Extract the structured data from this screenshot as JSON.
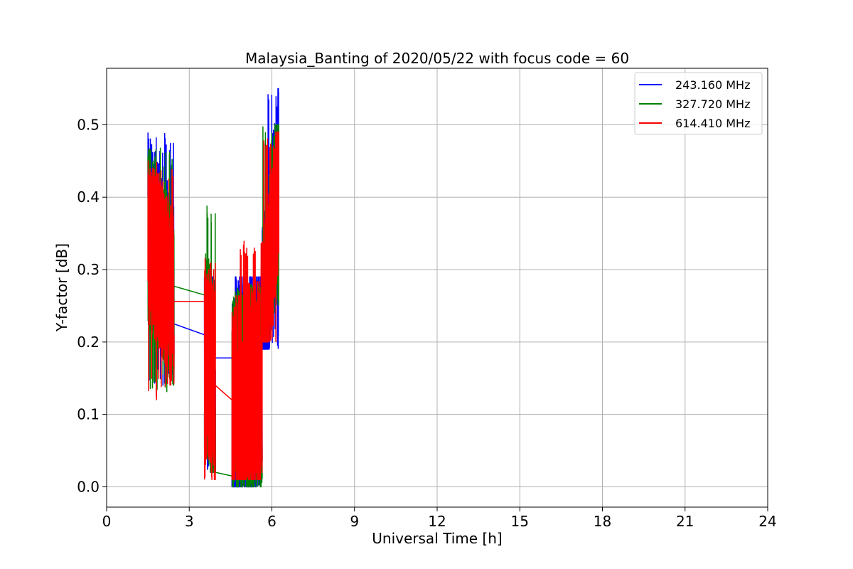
{
  "chart_data": {
    "type": "line",
    "title": "Malaysia_Banting of 2020/05/22 with focus code = 60",
    "xlabel": "Universal Time [h]",
    "ylabel": "Y-factor [dB]",
    "xlim": [
      0,
      24
    ],
    "ylim": [
      -0.028,
      0.578
    ],
    "xticks": [
      0,
      3,
      6,
      9,
      12,
      15,
      18,
      21,
      24
    ],
    "yticks": [
      0.0,
      0.1,
      0.2,
      0.3,
      0.4,
      0.5
    ],
    "ytick_labels": [
      "0.0",
      "0.1",
      "0.2",
      "0.3",
      "0.4",
      "0.5"
    ],
    "grid": true,
    "legend_position": "top-right",
    "series": [
      {
        "name": "243.160 MHz",
        "color": "#0000ff",
        "segments": [
          {
            "x_range": [
              1.5,
              2.45
            ],
            "y_start": 0.36,
            "y_end": 0.27,
            "amplitude": 0.13,
            "peak": 0.49,
            "trough": 0.14
          },
          {
            "x_range": [
              3.55,
              3.95
            ],
            "y_start": 0.2,
            "y_end": 0.14,
            "amplitude": 0.16,
            "peak": 0.29,
            "trough": 0.02
          },
          {
            "x_range": [
              4.55,
              5.65
            ],
            "y_start": 0.12,
            "y_end": 0.16,
            "amplitude": 0.17,
            "peak": 0.29,
            "trough": 0.0
          },
          {
            "x_range": [
              5.65,
              6.25
            ],
            "y_start": 0.23,
            "y_end": 0.43,
            "amplitude": 0.14,
            "peak": 0.55,
            "trough": 0.19
          }
        ],
        "connectors": [
          [
            2.45,
            0.225,
            3.55,
            0.21
          ],
          [
            3.95,
            0.178,
            4.55,
            0.178
          ]
        ]
      },
      {
        "name": "327.720 MHz",
        "color": "#008000",
        "segments": [
          {
            "x_range": [
              1.5,
              2.45
            ],
            "y_start": 0.35,
            "y_end": 0.26,
            "amplitude": 0.13,
            "peak": 0.47,
            "trough": 0.13
          },
          {
            "x_range": [
              3.55,
              3.95
            ],
            "y_start": 0.19,
            "y_end": 0.13,
            "amplitude": 0.15,
            "peak": 0.39,
            "trough": 0.02
          },
          {
            "x_range": [
              4.55,
              5.65
            ],
            "y_start": 0.11,
            "y_end": 0.15,
            "amplitude": 0.16,
            "peak": 0.28,
            "trough": 0.0
          },
          {
            "x_range": [
              5.65,
              6.25
            ],
            "y_start": 0.22,
            "y_end": 0.42,
            "amplitude": 0.13,
            "peak": 0.5,
            "trough": 0.24
          }
        ],
        "connectors": [
          [
            2.45,
            0.277,
            3.55,
            0.265
          ],
          [
            3.95,
            0.02,
            4.55,
            0.015
          ]
        ]
      },
      {
        "name": "614.410 MHz",
        "color": "#ff0000",
        "segments": [
          {
            "x_range": [
              1.5,
              2.45
            ],
            "y_start": 0.34,
            "y_end": 0.26,
            "amplitude": 0.12,
            "peak": 0.45,
            "trough": 0.12
          },
          {
            "x_range": [
              3.55,
              3.95
            ],
            "y_start": 0.19,
            "y_end": 0.13,
            "amplitude": 0.14,
            "peak": 0.32,
            "trough": 0.01
          },
          {
            "x_range": [
              4.55,
              5.65
            ],
            "y_start": 0.11,
            "y_end": 0.15,
            "amplitude": 0.15,
            "peak": 0.34,
            "trough": 0.01
          },
          {
            "x_range": [
              5.65,
              6.25
            ],
            "y_start": 0.22,
            "y_end": 0.42,
            "amplitude": 0.12,
            "peak": 0.49,
            "trough": 0.2
          }
        ],
        "connectors": [
          [
            2.45,
            0.256,
            3.55,
            0.256
          ],
          [
            3.95,
            0.14,
            4.55,
            0.12
          ]
        ]
      }
    ]
  }
}
